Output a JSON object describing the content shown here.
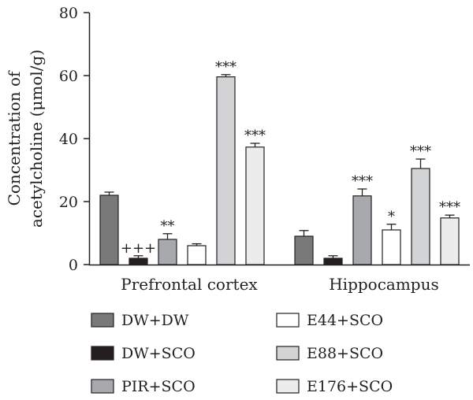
{
  "chart_data": {
    "type": "bar",
    "ylabel_line1": "Concentration of",
    "ylabel_line2": "acetylcholine (μmol/g)",
    "ylim": [
      0,
      80
    ],
    "yticks": [
      "0",
      "20",
      "40",
      "60",
      "80"
    ],
    "categories": [
      "Prefrontal cortex",
      "Hippocampus"
    ],
    "series": [
      {
        "name": "DW+DW",
        "color": "#797979",
        "values": [
          22.0,
          9.0
        ],
        "errors": [
          1.0,
          1.8
        ],
        "sig": [
          "",
          ""
        ]
      },
      {
        "name": "DW+SCO",
        "color": "#231f20",
        "values": [
          2.0,
          2.0
        ],
        "errors": [
          0.8,
          0.8
        ],
        "sig": [
          "+++",
          ""
        ]
      },
      {
        "name": "PIR+SCO",
        "color": "#a7a9ac",
        "values": [
          8.0,
          21.8
        ],
        "errors": [
          1.8,
          2.2
        ],
        "sig": [
          "**",
          "***"
        ]
      },
      {
        "name": "E44+SCO",
        "color": "#ffffff",
        "values": [
          6.0,
          11.0
        ],
        "errors": [
          0.6,
          1.8
        ],
        "sig": [
          "",
          "*"
        ]
      },
      {
        "name": "E88+SCO",
        "color": "#d1d3d4",
        "values": [
          59.6,
          30.5
        ],
        "errors": [
          0.7,
          3.0
        ],
        "sig": [
          "***",
          "***"
        ]
      },
      {
        "name": "E176+SCO",
        "color": "#ececec",
        "values": [
          37.3,
          14.8
        ],
        "errors": [
          1.2,
          0.9
        ],
        "sig": [
          "***",
          "***"
        ]
      }
    ]
  }
}
